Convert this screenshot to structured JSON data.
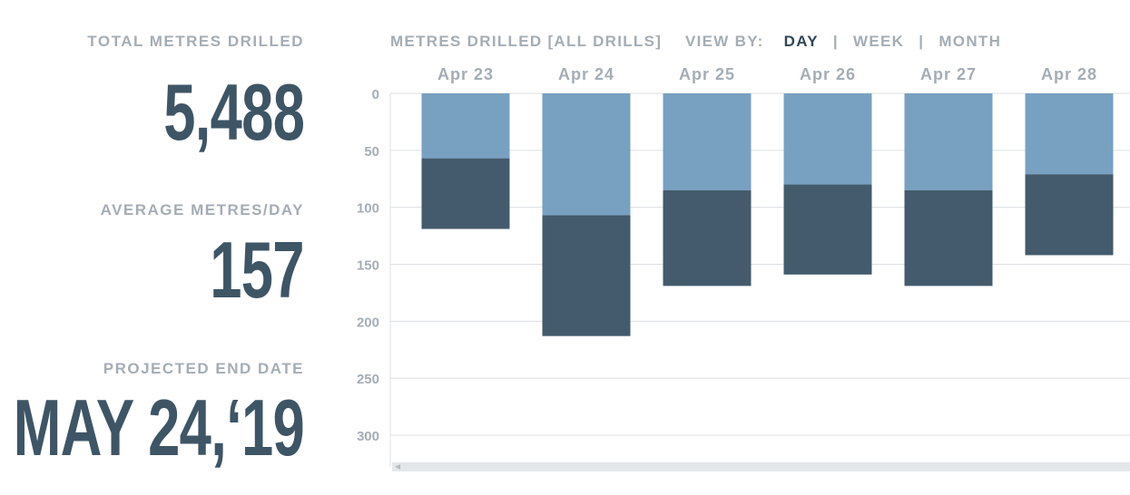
{
  "stats": {
    "total_label": "TOTAL METRES DRILLED",
    "total_value": "5,488",
    "average_label": "AVERAGE METRES/DAY",
    "average_value": "157",
    "projected_label": "PROJECTED END DATE",
    "projected_value": "MAY 24,‘19"
  },
  "header": {
    "chart_title": "METRES DRILLED [ALL DRILLS]",
    "view_by_label": "VIEW BY:",
    "view_options": [
      "DAY",
      "WEEK",
      "MONTH"
    ],
    "active_view": "DAY"
  },
  "colors": {
    "series_top": "#78a1c1",
    "series_bottom": "#435b6c",
    "grid": "#dcdfe2",
    "axis_text": "#a4adb5"
  },
  "chart_data": {
    "type": "bar",
    "stacked": true,
    "inverted_y": true,
    "categories": [
      "Apr 23",
      "Apr 24",
      "Apr 25",
      "Apr 26",
      "Apr 27",
      "Apr 28"
    ],
    "series": [
      {
        "values": [
          57,
          107,
          85,
          80,
          85,
          71
        ]
      },
      {
        "values": [
          62,
          106,
          84,
          79,
          84,
          71
        ]
      }
    ],
    "yticks": [
      0,
      50,
      100,
      150,
      200,
      250,
      300
    ],
    "ylim": [
      0,
      330
    ],
    "grid": true,
    "xlabel": "",
    "ylabel": ""
  }
}
